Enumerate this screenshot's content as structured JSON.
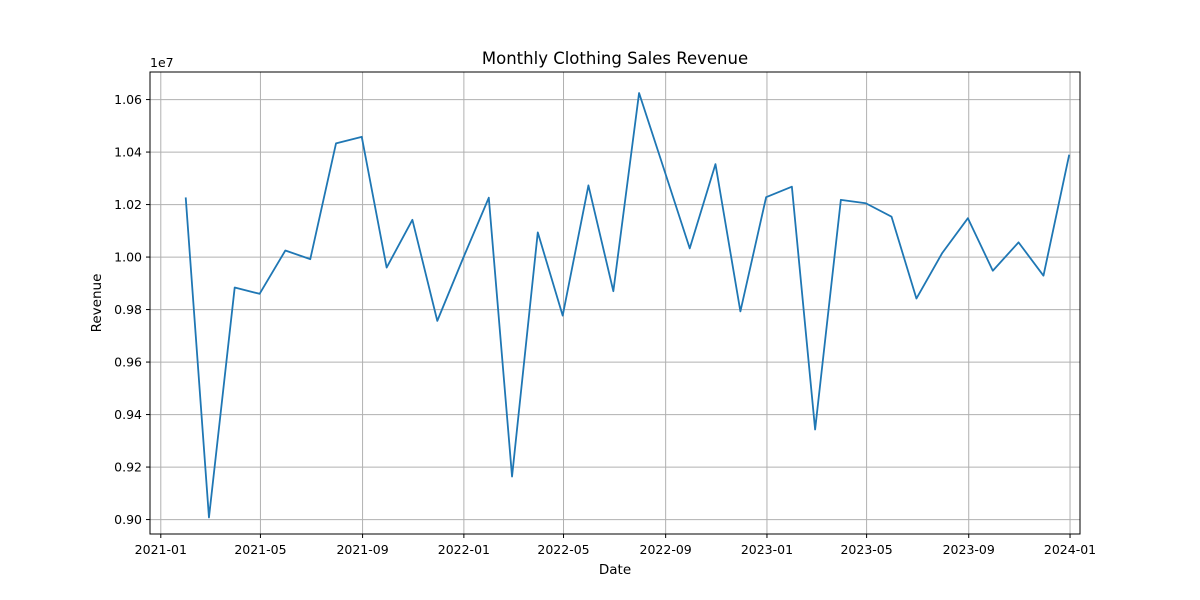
{
  "chart_data": {
    "type": "line",
    "title": "Monthly Clothing Sales Revenue",
    "xlabel": "Date",
    "ylabel": "Revenue",
    "y_offset_label": "1e7",
    "y_scale": 10000000,
    "xlim": [
      "2020-12-19",
      "2024-01-13"
    ],
    "ylim": [
      0.8945,
      1.0705
    ],
    "x_ticks": [
      "2021-01-01",
      "2021-05-01",
      "2021-09-01",
      "2022-01-01",
      "2022-05-01",
      "2022-09-01",
      "2023-01-01",
      "2023-05-01",
      "2023-09-01",
      "2024-01-01"
    ],
    "x_tick_labels": [
      "2021-01",
      "2021-05",
      "2021-09",
      "2022-01",
      "2022-05",
      "2022-09",
      "2023-01",
      "2023-05",
      "2023-09",
      "2024-01"
    ],
    "y_ticks": [
      0.9,
      0.92,
      0.94,
      0.96,
      0.98,
      1.0,
      1.02,
      1.04,
      1.06
    ],
    "y_tick_labels": [
      "0.90",
      "0.92",
      "0.94",
      "0.96",
      "0.98",
      "1.00",
      "1.02",
      "1.04",
      "1.06"
    ],
    "grid": true,
    "colors": {
      "line": "#1f77b4",
      "grid": "#b0b0b0",
      "axes": "#000000"
    },
    "series": [
      {
        "x": [
          "2021-01-31",
          "2021-02-28",
          "2021-03-31",
          "2021-04-30",
          "2021-05-31",
          "2021-06-30",
          "2021-07-31",
          "2021-08-31",
          "2021-09-30",
          "2021-10-31",
          "2021-11-30",
          "2021-12-31",
          "2022-01-31",
          "2022-02-28",
          "2022-03-31",
          "2022-04-30",
          "2022-05-31",
          "2022-06-30",
          "2022-07-31",
          "2022-08-31",
          "2022-09-30",
          "2022-10-31",
          "2022-11-30",
          "2022-12-31",
          "2023-01-31",
          "2023-02-28",
          "2023-03-31",
          "2023-04-30",
          "2023-05-31",
          "2023-06-30",
          "2023-07-31",
          "2023-08-31",
          "2023-09-30",
          "2023-10-31",
          "2023-11-30",
          "2023-12-31"
        ],
        "y": [
          1.0227,
          0.9008,
          0.9884,
          0.986,
          1.0025,
          0.9992,
          1.0433,
          1.0458,
          0.996,
          1.0142,
          0.9757,
          0.9995,
          1.0226,
          0.9164,
          1.0094,
          0.9777,
          1.0273,
          0.987,
          1.0625,
          1.0325,
          1.0033,
          1.0354,
          0.9793,
          1.0228,
          1.0268,
          0.9343,
          1.0218,
          1.0205,
          1.0154,
          0.9842,
          1.0015,
          1.0148,
          0.9948,
          1.0056,
          0.9929,
          1.039
        ]
      }
    ]
  }
}
